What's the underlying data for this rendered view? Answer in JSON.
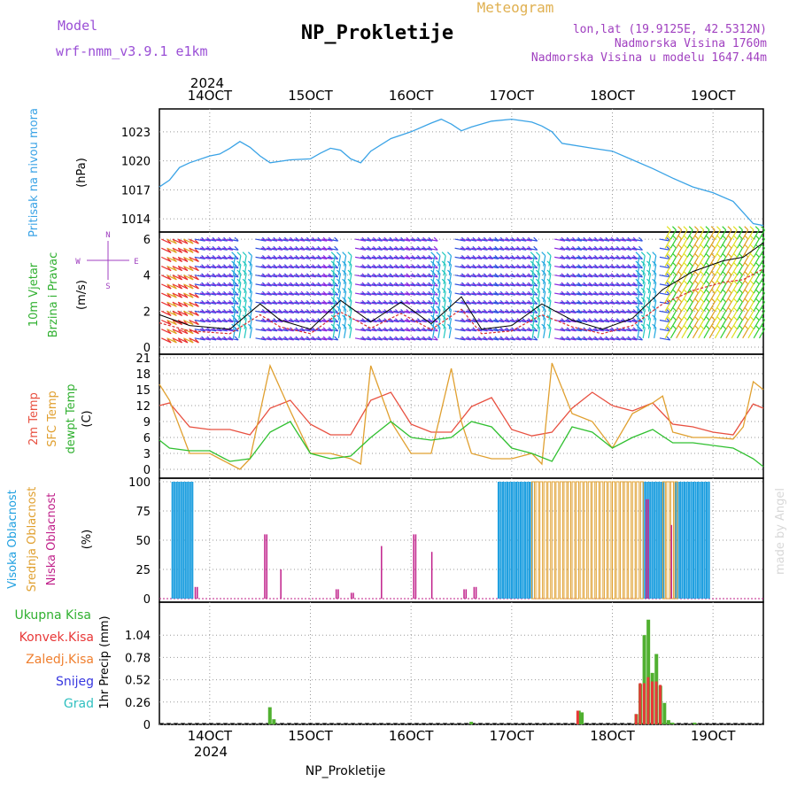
{
  "header": {
    "model_label": "Model",
    "model_name": "wrf-nmm_v3.9.1 e1km",
    "title": "NP_Prokletije",
    "meteogram": "Meteogram",
    "lonlat": "lon,lat (19.9125E, 42.5312N)",
    "elevation": "Nadmorska Visina 1760m",
    "model_elevation": "Nadmorska Visina u modelu 1647.44m",
    "footer_title": "NP_Prokletije",
    "credit": "made by Angel"
  },
  "time_axis": {
    "year": "2024",
    "day_labels": [
      "14OCT",
      "15OCT",
      "16OCT",
      "17OCT",
      "18OCT",
      "19OCT"
    ],
    "start_day": 13.5,
    "end_day": 19.5
  },
  "colors": {
    "pressure": "#3aa3e6",
    "temp2m": "#e85040",
    "sfc": "#e0a030",
    "dewpt": "#30c030",
    "high_cloud": "#20a0e0",
    "mid_cloud": "#e0a030",
    "low_cloud": "#c0208a",
    "total_precip": "#50b030",
    "conv_precip": "#e83838",
    "snow": "#3838e0",
    "hail": "#30c0c0",
    "wind_avg": "#d83030"
  },
  "labels": {
    "pressure_ylabel": "Pritisak na nivou mora",
    "pressure_unit": "(hPa)",
    "wind_ylabel_1": "10m Vjetar",
    "wind_ylabel_2": "Brzina i Pravac",
    "wind_unit": "(m/s)",
    "compass_n": "N",
    "compass_w": "W",
    "compass_e": "E",
    "compass_s": "S",
    "temp_ylabel_1": "2m Temp",
    "temp_ylabel_2": "SFC Temp",
    "temp_ylabel_3": "dewpt Temp",
    "temp_unit": "(C)",
    "cloud_ylabel_1": "Visoka Oblacnost",
    "cloud_ylabel_2": "Srednja Oblacnost",
    "cloud_ylabel_3": "Niska Oblacnost",
    "cloud_unit": "(%)",
    "precip_ylabel": "1hr Precip (mm)",
    "legend_total": "Ukupna Kisa",
    "legend_conv": "Konvek.Kisa",
    "legend_zaledj": "Zaledj.Kisa",
    "legend_snow": "Snijeg",
    "legend_hail": "Grad"
  },
  "chart_data": [
    {
      "type": "line",
      "panel": "pressure",
      "ylim": [
        1013,
        1025
      ],
      "yticks": [
        1014,
        1017,
        1020,
        1023
      ],
      "series": [
        {
          "x": [
            13.5,
            13.6,
            13.7,
            13.8,
            14.0,
            14.1,
            14.2,
            14.3,
            14.4,
            14.5,
            14.6,
            14.8,
            15.0,
            15.1,
            15.2,
            15.3,
            15.4,
            15.5,
            15.6,
            15.8,
            16.0,
            16.2,
            16.3,
            16.4,
            16.5,
            16.6,
            16.8,
            17.0,
            17.2,
            17.3,
            17.4,
            17.5,
            17.8,
            18.0,
            18.2,
            18.4,
            18.6,
            18.8,
            19.0,
            19.2,
            19.4,
            19.5
          ],
          "y": [
            1017.3,
            1018,
            1019.3,
            1019.8,
            1020.5,
            1020.7,
            1021.3,
            1022,
            1021.4,
            1020.5,
            1019.8,
            1020.1,
            1020.2,
            1020.8,
            1021.3,
            1021.1,
            1020.2,
            1019.8,
            1021,
            1022.3,
            1023,
            1023.9,
            1024.3,
            1023.8,
            1023.1,
            1023.5,
            1024.1,
            1024.3,
            1024,
            1023.6,
            1023,
            1021.8,
            1021.3,
            1021,
            1020.1,
            1019.2,
            1018.2,
            1017.3,
            1016.7,
            1015.8,
            1013.5,
            1013.3
          ]
        }
      ]
    },
    {
      "type": "line",
      "panel": "temperature",
      "ylim": [
        -1,
        21
      ],
      "yticks": [
        0,
        3,
        6,
        9,
        12,
        15,
        18,
        21
      ],
      "series": [
        {
          "name": "2m Temp",
          "x": [
            13.5,
            13.6,
            13.8,
            14.0,
            14.2,
            14.4,
            14.6,
            14.8,
            15.0,
            15.2,
            15.4,
            15.6,
            15.8,
            16.0,
            16.2,
            16.4,
            16.6,
            16.8,
            17.0,
            17.2,
            17.4,
            17.6,
            17.8,
            18.0,
            18.2,
            18.4,
            18.6,
            18.8,
            19.0,
            19.2,
            19.4,
            19.5
          ],
          "y": [
            12,
            12.5,
            8,
            7.5,
            7.5,
            6.5,
            11.5,
            13,
            8.5,
            6.5,
            6.5,
            13,
            14.5,
            8.5,
            7,
            7,
            11.8,
            13.5,
            7.5,
            6.3,
            7,
            11.5,
            14.5,
            12,
            11,
            12.5,
            8.5,
            8,
            7,
            6.5,
            12.3,
            11.5
          ]
        },
        {
          "name": "SFC Temp",
          "x": [
            13.5,
            13.6,
            13.8,
            14.0,
            14.2,
            14.3,
            14.4,
            14.6,
            14.8,
            15.0,
            15.2,
            15.4,
            15.5,
            15.6,
            15.8,
            16.0,
            16.2,
            16.4,
            16.5,
            16.6,
            16.8,
            17.0,
            17.2,
            17.3,
            17.4,
            17.6,
            17.8,
            18.0,
            18.2,
            18.4,
            18.5,
            18.6,
            18.8,
            19.0,
            19.2,
            19.3,
            19.4,
            19.5
          ],
          "y": [
            16,
            13,
            3,
            3,
            1,
            0,
            2,
            19.5,
            11,
            3,
            3,
            2,
            1,
            19.5,
            9,
            3,
            3,
            19,
            9,
            3,
            2,
            2,
            3,
            1,
            20,
            10.5,
            9,
            4,
            10.5,
            12.5,
            13.8,
            7,
            6,
            6,
            5.7,
            8,
            16.5,
            15
          ]
        },
        {
          "name": "dewpt Temp",
          "x": [
            13.5,
            13.6,
            13.8,
            14.0,
            14.2,
            14.4,
            14.6,
            14.8,
            15.0,
            15.2,
            15.4,
            15.6,
            15.8,
            16.0,
            16.2,
            16.4,
            16.6,
            16.8,
            17.0,
            17.2,
            17.4,
            17.6,
            17.8,
            18.0,
            18.2,
            18.4,
            18.6,
            18.8,
            19.0,
            19.2,
            19.4,
            19.5
          ],
          "y": [
            5.5,
            4,
            3.5,
            3.5,
            1.5,
            2,
            7,
            9,
            3,
            2,
            2.5,
            6,
            9,
            6,
            5.5,
            6,
            9,
            8,
            4,
            3,
            1.5,
            8,
            7,
            4,
            6,
            7.5,
            5,
            5,
            4.5,
            4,
            2,
            0.5
          ]
        }
      ]
    },
    {
      "type": "bar",
      "panel": "cloud",
      "ylim": [
        0,
        100
      ],
      "yticks": [
        0,
        25,
        50,
        75,
        100
      ],
      "series": [
        {
          "name": "Visoka Oblacnost",
          "x_ranges": [
            [
              13.62,
              13.84
            ],
            [
              16.86,
              17.2
            ],
            [
              18.3,
              18.5
            ],
            [
              18.62,
              18.96
            ]
          ],
          "value": 100
        },
        {
          "name": "Srednja Oblacnost",
          "x_ranges": [
            [
              17.2,
              18.28
            ],
            [
              18.5,
              18.62
            ]
          ],
          "value": 100
        },
        {
          "name": "Niska Oblacnost",
          "x": [
            13.85,
            13.87,
            14.54,
            14.56,
            14.7,
            15.25,
            15.27,
            15.4,
            15.42,
            15.7,
            16.02,
            16.04,
            16.2,
            16.52,
            16.54,
            16.62,
            16.64,
            18.33,
            18.35,
            18.58
          ],
          "y": [
            10,
            10,
            55,
            55,
            25,
            8,
            8,
            5,
            5,
            45,
            55,
            55,
            40,
            8,
            8,
            10,
            10,
            85,
            85,
            63
          ]
        }
      ]
    },
    {
      "type": "bar",
      "panel": "precipitation",
      "ylim": [
        0,
        1.3
      ],
      "yticks": [
        0,
        0.26,
        0.52,
        0.78,
        1.04
      ],
      "series": [
        {
          "name": "Ukupna Kisa",
          "x": [
            14.58,
            14.62,
            16.58,
            17.65,
            17.68,
            18.22,
            18.26,
            18.3,
            18.34,
            18.38,
            18.42,
            18.46,
            18.5,
            18.54,
            18.58,
            18.8
          ],
          "y": [
            0.2,
            0.06,
            0.03,
            0.16,
            0.14,
            0.12,
            0.47,
            1.04,
            1.22,
            0.6,
            0.82,
            0.45,
            0.25,
            0.05,
            0.02,
            0.02
          ]
        },
        {
          "name": "Konvek.Kisa",
          "x": [
            17.66,
            18.24,
            18.28,
            18.32,
            18.36,
            18.4,
            18.44,
            18.48
          ],
          "y": [
            0.16,
            0.12,
            0.48,
            0.48,
            0.55,
            0.5,
            0.5,
            0.46
          ]
        }
      ]
    }
  ]
}
